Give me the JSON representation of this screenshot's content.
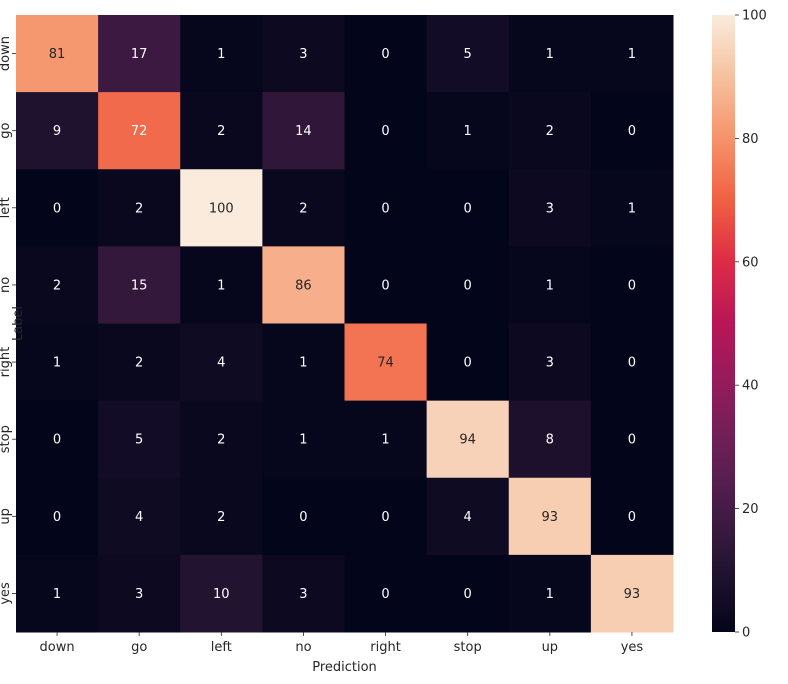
{
  "chart_data": {
    "type": "heatmap",
    "xlabel": "Prediction",
    "ylabel": "Label",
    "x_categories": [
      "down",
      "go",
      "left",
      "no",
      "right",
      "stop",
      "up",
      "yes"
    ],
    "y_categories": [
      "down",
      "go",
      "left",
      "no",
      "right",
      "stop",
      "up",
      "yes"
    ],
    "values": [
      [
        81,
        17,
        1,
        3,
        0,
        5,
        1,
        1
      ],
      [
        9,
        72,
        2,
        14,
        0,
        1,
        2,
        0
      ],
      [
        0,
        2,
        100,
        2,
        0,
        0,
        3,
        1
      ],
      [
        2,
        15,
        1,
        86,
        0,
        0,
        1,
        0
      ],
      [
        1,
        2,
        4,
        1,
        74,
        0,
        3,
        0
      ],
      [
        0,
        5,
        2,
        1,
        1,
        94,
        8,
        0
      ],
      [
        0,
        4,
        2,
        0,
        0,
        4,
        93,
        0
      ],
      [
        1,
        3,
        10,
        3,
        0,
        0,
        1,
        93
      ]
    ],
    "colorbar": {
      "min": 0,
      "max": 100,
      "ticks": [
        0,
        20,
        40,
        60,
        80,
        100
      ],
      "colormap": "rocket"
    },
    "colormap_stops": [
      "#03051a",
      "#221331",
      "#451c47",
      "#6a1f56",
      "#921c5b",
      "#b91657",
      "#dd2c45",
      "#f06043",
      "#f5936a",
      "#f6c19f",
      "#faebdd"
    ]
  }
}
